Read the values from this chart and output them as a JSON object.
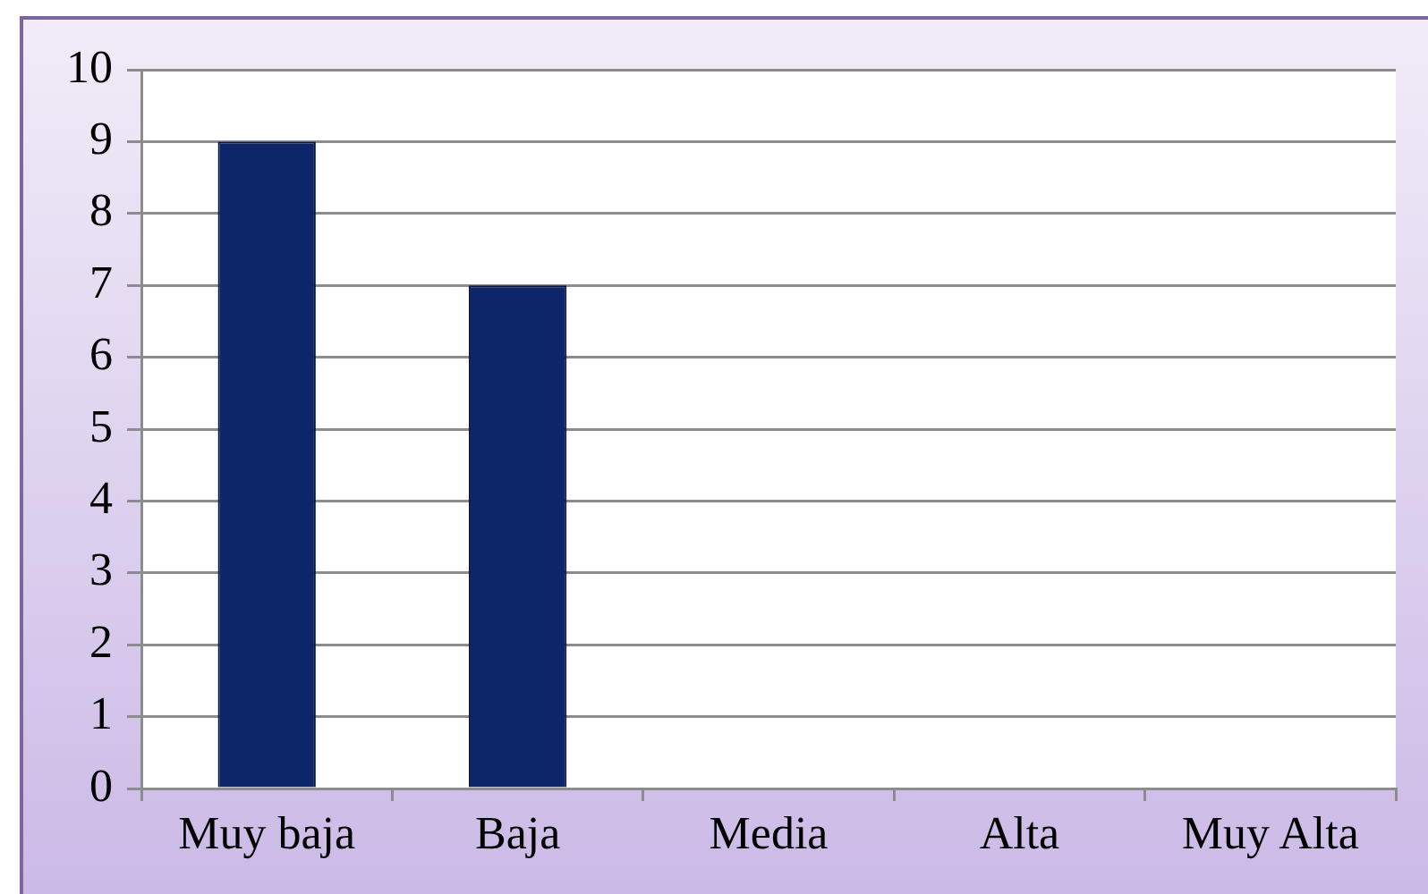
{
  "chart_data": {
    "type": "bar",
    "categories": [
      "Muy baja",
      "Baja",
      "Media",
      "Alta",
      "Muy Alta"
    ],
    "values": [
      9,
      7,
      0,
      0,
      0
    ],
    "color": "#0c2669",
    "ylim": [
      0,
      10
    ],
    "yticks": [
      0,
      1,
      2,
      3,
      4,
      5,
      6,
      7,
      8,
      9,
      10
    ],
    "grid": "y"
  }
}
